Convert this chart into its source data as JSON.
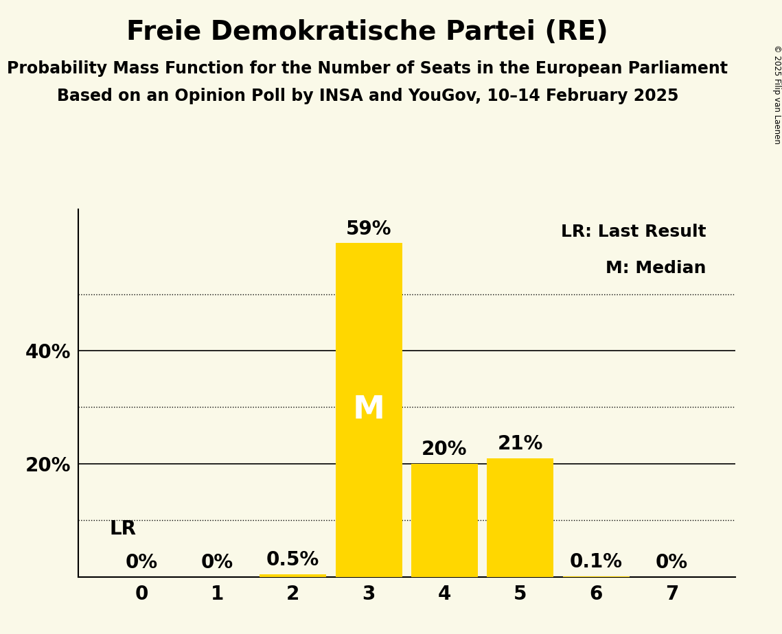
{
  "title": "Freie Demokratische Partei (RE)",
  "subtitle1": "Probability Mass Function for the Number of Seats in the European Parliament",
  "subtitle2": "Based on an Opinion Poll by INSA and YouGov, 10–14 February 2025",
  "copyright_text": "© 2025 Filip van Laenen",
  "categories": [
    0,
    1,
    2,
    3,
    4,
    5,
    6,
    7
  ],
  "values": [
    0.0,
    0.0,
    0.5,
    59.0,
    20.0,
    21.0,
    0.1,
    0.0
  ],
  "bar_color": "#FFD700",
  "background_color": "#FAF9E8",
  "label_color_inside": "#FFFFFF",
  "label_color_outside": "#000000",
  "ylim": [
    0,
    65
  ],
  "solid_grid": [
    20,
    40
  ],
  "dotted_grid": [
    10,
    30,
    50
  ],
  "title_fontsize": 28,
  "subtitle_fontsize": 17,
  "axis_fontsize": 20,
  "bar_label_fontsize": 20,
  "legend_fontsize": 18,
  "median_seat": 3,
  "lr_seat": 0,
  "note_lr": "LR: Last Result",
  "note_m": "M: Median"
}
